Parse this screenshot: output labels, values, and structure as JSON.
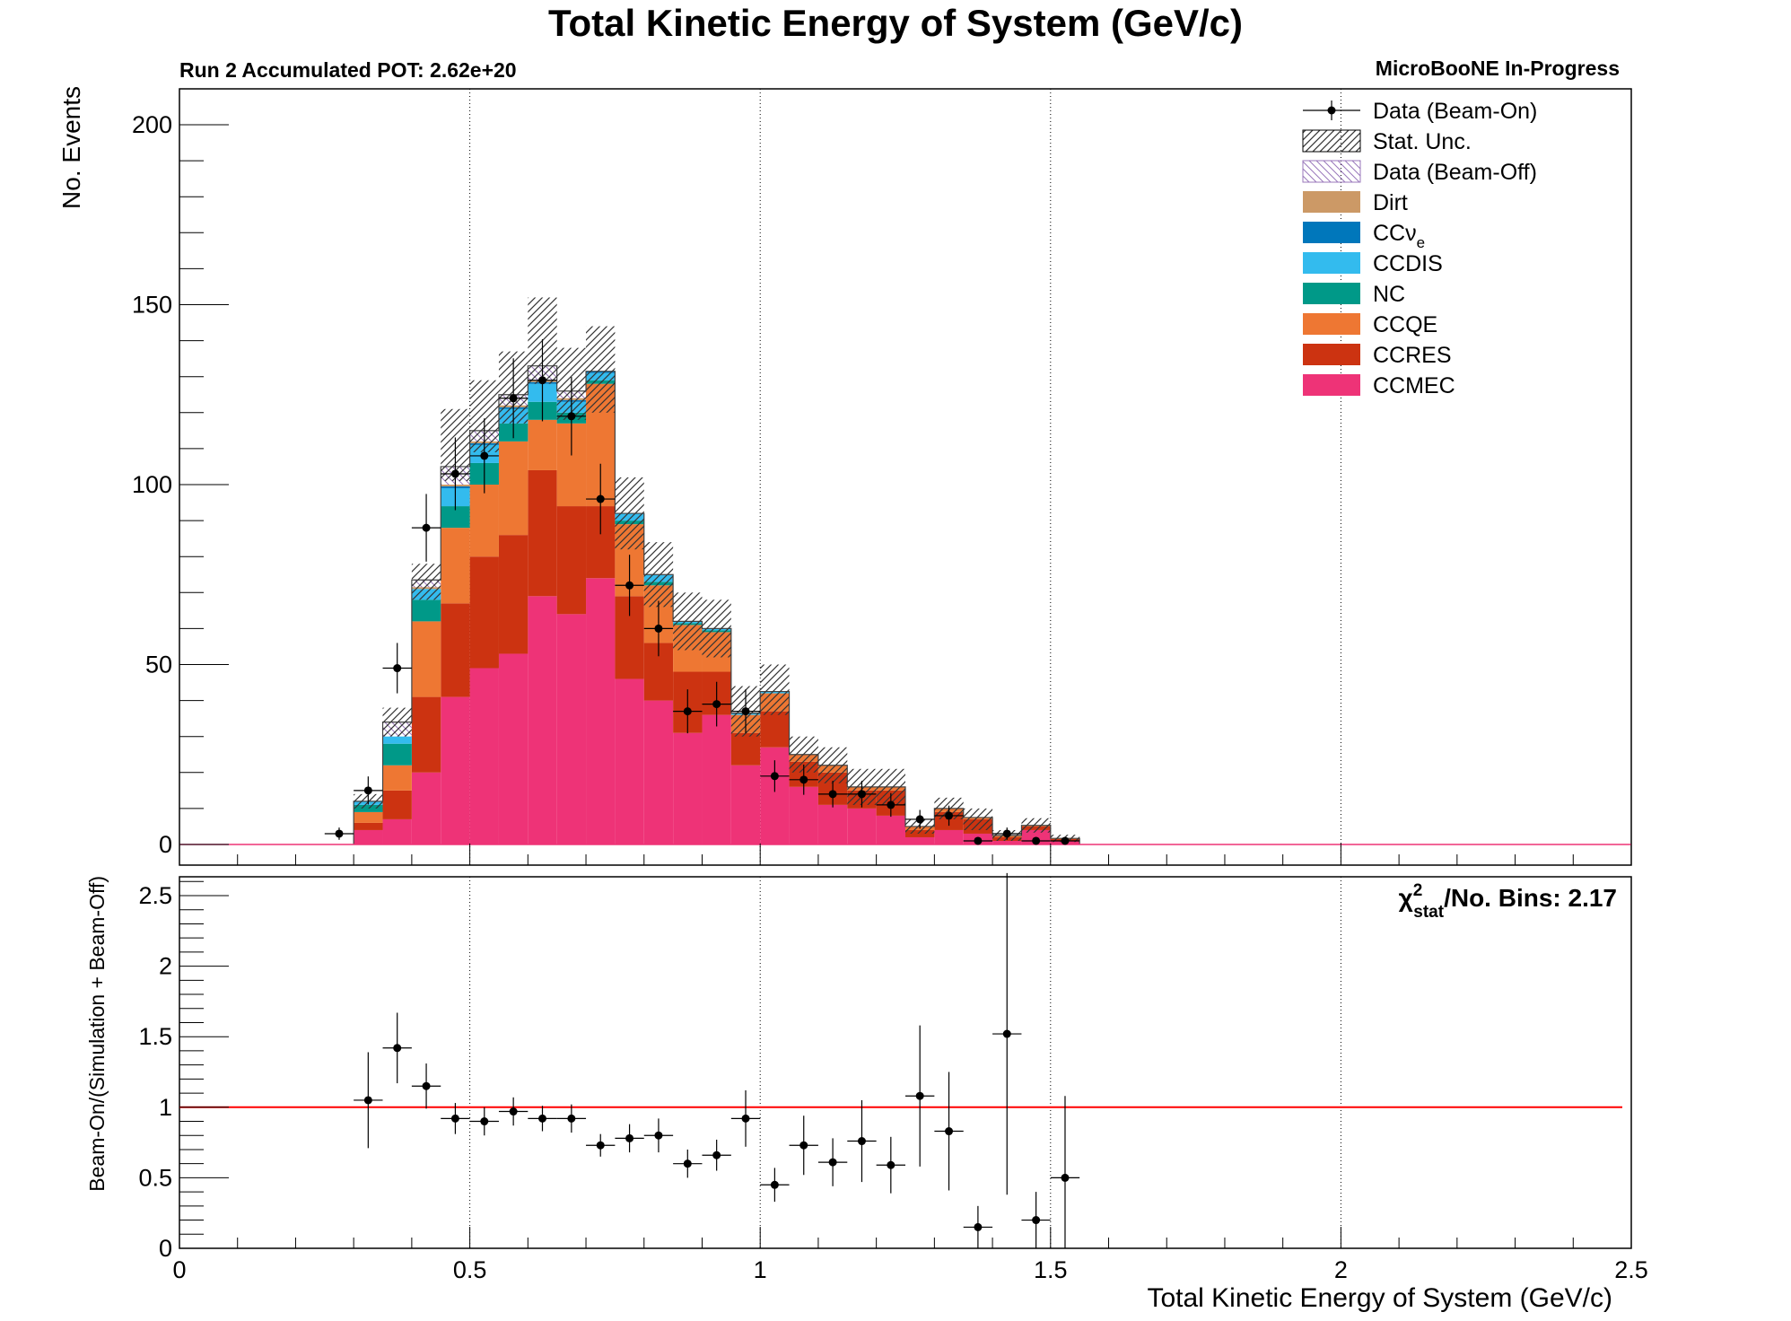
{
  "title": "Total Kinetic Energy of System (GeV/c)",
  "pot_label": "Run 2 Accumulated POT: 2.62e+20",
  "collab_label": "MicroBooNE In-Progress",
  "chi2": {
    "symbol": "χ",
    "sup": "2",
    "sub": "stat",
    "rest": "/No. Bins: 2.17"
  },
  "chart_data": [
    {
      "type": "bar",
      "stacked": true,
      "x_range": [
        0,
        2.5
      ],
      "ylim": [
        0,
        210
      ],
      "ylabel": "No. Events",
      "x_major_ticks": [
        0,
        0.5,
        1,
        1.5,
        2,
        2.5
      ],
      "x_tick_labels": [
        "0",
        "0.5",
        "1",
        "1.5",
        "2",
        "2.5"
      ],
      "y_major_ticks": [
        0,
        50,
        100,
        150,
        200
      ],
      "y_tick_labels": [
        "0",
        "50",
        "100",
        "150",
        "200"
      ],
      "grid": "vertical dotted at x major ticks",
      "legend_position": "top-right",
      "bin_edges": [
        0.3,
        0.35,
        0.4,
        0.45,
        0.5,
        0.55,
        0.6,
        0.65,
        0.7,
        0.75,
        0.8,
        0.85,
        0.9,
        0.95,
        1.0,
        1.05,
        1.1,
        1.15,
        1.2,
        1.25,
        1.3,
        1.35,
        1.4,
        1.45,
        1.5,
        1.55
      ],
      "series": [
        {
          "name": "CCMEC",
          "color": "#ee3377",
          "values": [
            4,
            7,
            20,
            41,
            49,
            53,
            69,
            64,
            74,
            46,
            40,
            31,
            36,
            22,
            27,
            16,
            11,
            10,
            8,
            2,
            4,
            3,
            1,
            4,
            1
          ]
        },
        {
          "name": "CCRES",
          "color": "#cc3311",
          "values": [
            2,
            8,
            21,
            26,
            31,
            33,
            35,
            30,
            20,
            23,
            16,
            17,
            12,
            9,
            10,
            7,
            9,
            5,
            7,
            2,
            5,
            4,
            1,
            1,
            0.5
          ]
        },
        {
          "name": "CCQE",
          "color": "#ee7733",
          "values": [
            3,
            7,
            21,
            21,
            20,
            26,
            14,
            23,
            34,
            20,
            16,
            13,
            11,
            5,
            5,
            2,
            2,
            1,
            1,
            1,
            1,
            0.5,
            0.5,
            0.3,
            0.2
          ]
        },
        {
          "name": "NC",
          "color": "#009988",
          "values": [
            2,
            6,
            6,
            6,
            6,
            5,
            5,
            3,
            1,
            1,
            1,
            0.5,
            0.5,
            0,
            0,
            0,
            0,
            0,
            0,
            0,
            0,
            0,
            0,
            0,
            0
          ]
        },
        {
          "name": "CCDIS",
          "color": "#33bbee",
          "values": [
            1,
            2,
            3,
            5,
            5,
            4,
            5,
            3,
            2,
            2,
            2,
            0.5,
            0.5,
            0.5,
            0.5,
            0,
            0,
            0,
            0,
            0,
            0,
            0,
            0,
            0,
            0
          ]
        },
        {
          "name": "CCνe",
          "color": "#0077bb",
          "values": [
            0,
            0,
            0,
            0.5,
            0.5,
            0.5,
            0.5,
            0.5,
            0.5,
            0,
            0,
            0,
            0,
            0,
            0,
            0,
            0,
            0,
            0,
            0,
            0,
            0,
            0,
            0,
            0
          ]
        },
        {
          "name": "Dirt",
          "color": "#cc9966",
          "values": [
            0,
            0,
            0.5,
            0.5,
            0.5,
            0.5,
            0.5,
            0.5,
            0,
            0,
            0,
            0,
            0,
            0,
            0,
            0,
            0,
            0,
            0,
            0,
            0,
            0,
            0,
            0,
            0
          ]
        },
        {
          "name": "Data (Beam-Off)",
          "color": "#aa88cc",
          "values": [
            0,
            4,
            2,
            5,
            3,
            3,
            4,
            2,
            0,
            0,
            0,
            0,
            0,
            0,
            0,
            0,
            0,
            0,
            0,
            0,
            0,
            0,
            0,
            0,
            0
          ]
        }
      ],
      "stat_unc": {
        "name": "Stat. Unc.",
        "total": [
          12,
          34,
          73,
          111,
          119,
          127,
          140,
          128,
          132,
          92,
          75,
          62,
          60,
          37,
          43,
          25,
          22,
          16,
          16,
          5,
          10,
          7,
          2.5,
          5.3,
          1.7
        ],
        "error": [
          2,
          4,
          5,
          10,
          10,
          10,
          12,
          10,
          12,
          10,
          9,
          8,
          8,
          7,
          7,
          5,
          5,
          5,
          5,
          2,
          3,
          3,
          1.5,
          2,
          1
        ]
      },
      "data_points": {
        "name": "Data (Beam-On)",
        "x": [
          0.275,
          0.325,
          0.375,
          0.425,
          0.475,
          0.525,
          0.575,
          0.625,
          0.675,
          0.725,
          0.775,
          0.825,
          0.875,
          0.925,
          0.975,
          1.025,
          1.075,
          1.125,
          1.175,
          1.225,
          1.275,
          1.325,
          1.375,
          1.425,
          1.475,
          1.525
        ],
        "y": [
          3,
          15,
          49,
          88,
          103,
          108,
          124,
          129,
          119,
          96,
          72,
          60,
          37,
          39,
          37,
          19,
          18,
          14,
          14,
          11,
          7,
          8,
          1,
          3,
          1,
          1
        ],
        "err": [
          1.7,
          3.9,
          7,
          9.4,
          10.1,
          10.4,
          11.1,
          11.4,
          10.9,
          9.8,
          8.5,
          7.7,
          6.1,
          6.2,
          6.1,
          4.4,
          4.2,
          3.7,
          3.7,
          3.3,
          2.6,
          2.8,
          1,
          1.7,
          1,
          1
        ]
      }
    },
    {
      "type": "scatter",
      "x_range": [
        0,
        2.5
      ],
      "ylim": [
        0,
        2.7
      ],
      "ylabel": "Beam-On/(Simulation + Beam-Off)",
      "xlabel": "Total Kinetic Energy of System (GeV/c)",
      "y_major_ticks": [
        0,
        0.5,
        1,
        1.5,
        2,
        2.5
      ],
      "y_tick_labels": [
        "0",
        "0.5",
        "1",
        "1.5",
        "2",
        "2.5"
      ],
      "reference_line": {
        "y": 1,
        "color": "#ff0000"
      },
      "x": [
        0.325,
        0.375,
        0.425,
        0.475,
        0.525,
        0.575,
        0.625,
        0.675,
        0.725,
        0.775,
        0.825,
        0.875,
        0.925,
        0.975,
        1.025,
        1.075,
        1.125,
        1.175,
        1.225,
        1.275,
        1.325,
        1.375,
        1.425,
        1.475,
        1.525
      ],
      "y": [
        1.05,
        1.42,
        1.15,
        0.92,
        0.9,
        0.97,
        0.92,
        0.92,
        0.73,
        0.78,
        0.8,
        0.6,
        0.66,
        0.92,
        0.45,
        0.73,
        0.61,
        0.76,
        0.59,
        1.08,
        0.83,
        0.15,
        1.52,
        0.2,
        0.5
      ],
      "err": [
        0.34,
        0.25,
        0.16,
        0.11,
        0.1,
        0.1,
        0.09,
        0.1,
        0.08,
        0.1,
        0.12,
        0.1,
        0.11,
        0.2,
        0.12,
        0.21,
        0.17,
        0.29,
        0.2,
        0.5,
        0.42,
        0.15,
        1.14,
        0.2,
        0.58
      ]
    }
  ]
}
